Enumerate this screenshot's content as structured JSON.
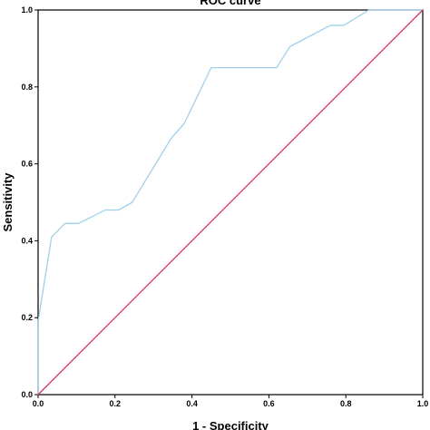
{
  "chart_data": {
    "type": "line",
    "title": "ROC curve",
    "xlabel": "1 - Specificity",
    "ylabel": "Sensitivity",
    "xlim": [
      0,
      1
    ],
    "ylim": [
      0,
      1
    ],
    "x_ticks": [
      "0.0",
      "0.2",
      "0.4",
      "0.6",
      "0.8",
      "1.0"
    ],
    "y_ticks": [
      "0.0",
      "0.2",
      "0.4",
      "0.6",
      "0.8",
      "1.0"
    ],
    "grid": false,
    "series": [
      {
        "color": "#9fd0ea",
        "points": [
          [
            0.0,
            0.0
          ],
          [
            0.0,
            0.19
          ],
          [
            0.035,
            0.41
          ],
          [
            0.07,
            0.445
          ],
          [
            0.105,
            0.445
          ],
          [
            0.175,
            0.48
          ],
          [
            0.21,
            0.48
          ],
          [
            0.245,
            0.5
          ],
          [
            0.345,
            0.665
          ],
          [
            0.38,
            0.705
          ],
          [
            0.45,
            0.85
          ],
          [
            0.62,
            0.85
          ],
          [
            0.655,
            0.905
          ],
          [
            0.76,
            0.96
          ],
          [
            0.795,
            0.96
          ],
          [
            0.86,
            1.0
          ],
          [
            1.0,
            1.0
          ]
        ]
      },
      {
        "color": "#d6336c",
        "points": [
          [
            0.0,
            0.0
          ],
          [
            1.0,
            1.0
          ]
        ]
      }
    ]
  }
}
